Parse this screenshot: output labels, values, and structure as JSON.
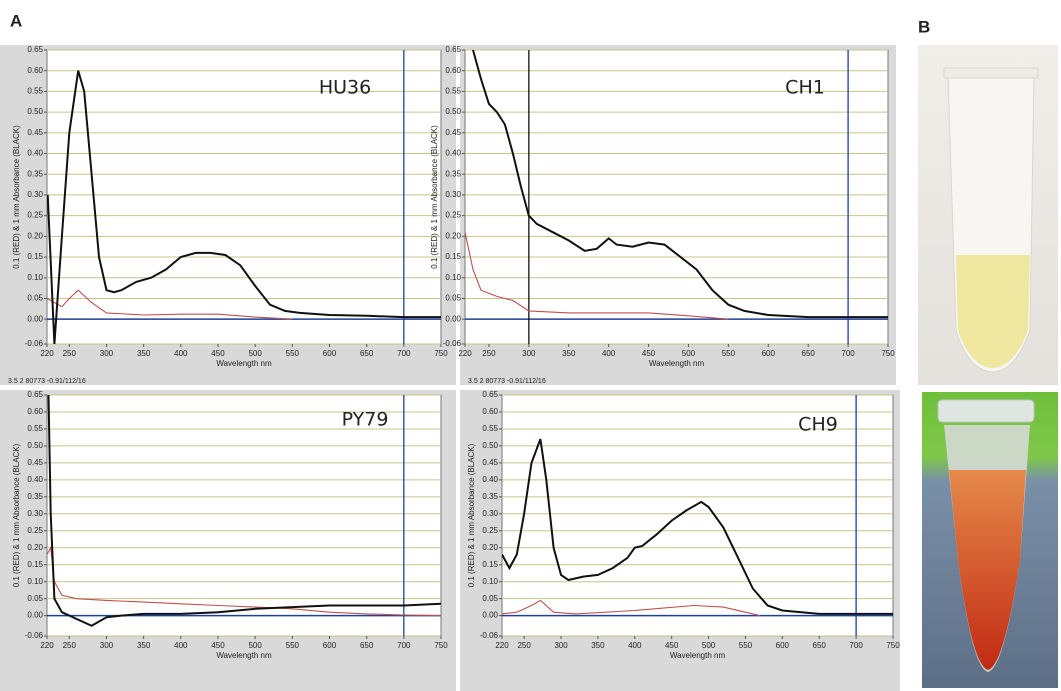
{
  "panel_labels": [
    "A",
    "B"
  ],
  "chart_data": [
    {
      "type": "line",
      "title": "HU36",
      "ylabel": "0.1 (RED) & 1 mm Absorbance (BLACK)",
      "xlabel": "Wavelength nm",
      "footer": "3.5 2 80773 -0.91/112/16",
      "xlim": [
        220,
        750
      ],
      "ylim": [
        -0.06,
        0.65
      ],
      "xticks": [
        220,
        250,
        300,
        350,
        400,
        450,
        500,
        550,
        600,
        650,
        700,
        750
      ],
      "yticks": [
        {
          "value": -0.06,
          "label": "-0.06"
        },
        {
          "value": 0,
          "label": "0.00"
        },
        {
          "value": 0.05,
          "label": "0.05"
        },
        {
          "value": 0.1,
          "label": "0.10"
        },
        {
          "value": 0.15,
          "label": "0.15"
        },
        {
          "value": 0.2,
          "label": "0.20"
        },
        {
          "value": 0.25,
          "label": "0.25"
        },
        {
          "value": 0.3,
          "label": "0.30"
        },
        {
          "value": 0.35,
          "label": "0.35"
        },
        {
          "value": 0.4,
          "label": "0.40"
        },
        {
          "value": 0.45,
          "label": "0.45"
        },
        {
          "value": 0.5,
          "label": "0.50"
        },
        {
          "value": 0.55,
          "label": "0.55"
        },
        {
          "value": 0.6,
          "label": "0.60"
        },
        {
          "value": 0.65,
          "label": "0.65"
        }
      ],
      "grid": true,
      "hline": {
        "y": 0,
        "color": "#1f3f9f"
      },
      "vlines": [
        {
          "x": 700,
          "color": "#1f3f9f"
        }
      ],
      "series": [
        {
          "color": "#111111",
          "x": [
            221,
            230,
            240,
            250,
            262,
            270,
            280,
            290,
            300,
            310,
            320,
            340,
            360,
            380,
            400,
            420,
            440,
            460,
            480,
            500,
            520,
            540,
            560,
            600,
            650,
            700,
            750
          ],
          "values": [
            0.3,
            -0.06,
            0.2,
            0.45,
            0.6,
            0.55,
            0.35,
            0.15,
            0.07,
            0.065,
            0.07,
            0.09,
            0.1,
            0.12,
            0.15,
            0.16,
            0.16,
            0.155,
            0.13,
            0.08,
            0.035,
            0.02,
            0.015,
            0.01,
            0.008,
            0.005,
            0.005
          ]
        },
        {
          "color": "#c0504d",
          "x": [
            220,
            240,
            250,
            262,
            280,
            300,
            350,
            400,
            450,
            500,
            550
          ],
          "values": [
            0.05,
            0.03,
            0.05,
            0.07,
            0.04,
            0.015,
            0.01,
            0.012,
            0.012,
            0.005,
            0
          ]
        }
      ]
    },
    {
      "type": "line",
      "title": "CH1",
      "ylabel": "0.1 (RED) & 1 mm Absorbance (BLACK)",
      "xlabel": "Wavelength nm",
      "footer": "3.5 2 80773 -0.91/112/16",
      "xlim": [
        220,
        750
      ],
      "ylim": [
        -0.06,
        0.65
      ],
      "xticks": [
        220,
        250,
        300,
        350,
        400,
        450,
        500,
        550,
        600,
        650,
        700,
        750
      ],
      "yticks": [
        {
          "value": -0.06,
          "label": "-0.06"
        },
        {
          "value": 0,
          "label": "0.00"
        },
        {
          "value": 0.05,
          "label": "0.05"
        },
        {
          "value": 0.1,
          "label": "0.10"
        },
        {
          "value": 0.15,
          "label": "0.15"
        },
        {
          "value": 0.2,
          "label": "0.20"
        },
        {
          "value": 0.25,
          "label": "0.25"
        },
        {
          "value": 0.3,
          "label": "0.30"
        },
        {
          "value": 0.35,
          "label": "0.35"
        },
        {
          "value": 0.4,
          "label": "0.40"
        },
        {
          "value": 0.45,
          "label": "0.45"
        },
        {
          "value": 0.5,
          "label": "0.50"
        },
        {
          "value": 0.55,
          "label": "0.55"
        },
        {
          "value": 0.6,
          "label": "0.60"
        },
        {
          "value": 0.65,
          "label": "0.65"
        }
      ],
      "grid": true,
      "hline": {
        "y": 0,
        "color": "#1f3f9f"
      },
      "vlines": [
        {
          "x": 300,
          "color": "#111111"
        },
        {
          "x": 700,
          "color": "#1f3f9f"
        }
      ],
      "series": [
        {
          "color": "#111111",
          "x": [
            230,
            240,
            250,
            260,
            270,
            280,
            290,
            300,
            310,
            330,
            350,
            370,
            385,
            400,
            410,
            430,
            450,
            470,
            490,
            510,
            530,
            550,
            570,
            600,
            650,
            700,
            750
          ],
          "values": [
            0.65,
            0.58,
            0.52,
            0.5,
            0.47,
            0.4,
            0.32,
            0.25,
            0.23,
            0.21,
            0.19,
            0.165,
            0.17,
            0.195,
            0.18,
            0.175,
            0.185,
            0.18,
            0.15,
            0.12,
            0.07,
            0.035,
            0.02,
            0.01,
            0.005,
            0.005,
            0.005
          ]
        },
        {
          "color": "#c0504d",
          "x": [
            220,
            230,
            240,
            260,
            280,
            300,
            350,
            400,
            450,
            500,
            550
          ],
          "values": [
            0.21,
            0.12,
            0.07,
            0.055,
            0.045,
            0.02,
            0.015,
            0.015,
            0.015,
            0.008,
            0
          ]
        }
      ]
    },
    {
      "type": "line",
      "title": "PY79",
      "ylabel": "0.1 (RED) & 1 mm Absorbance (BLACK)",
      "xlabel": "Wavelength nm",
      "xlim": [
        220,
        750
      ],
      "ylim": [
        -0.06,
        0.65
      ],
      "xticks": [
        220,
        250,
        300,
        350,
        400,
        450,
        500,
        550,
        600,
        650,
        700,
        750
      ],
      "yticks": [
        {
          "value": -0.06,
          "label": "-0.06"
        },
        {
          "value": 0,
          "label": "0.00"
        },
        {
          "value": 0.05,
          "label": "0.05"
        },
        {
          "value": 0.1,
          "label": "0.10"
        },
        {
          "value": 0.15,
          "label": "0.15"
        },
        {
          "value": 0.2,
          "label": "0.20"
        },
        {
          "value": 0.25,
          "label": "0.25"
        },
        {
          "value": 0.3,
          "label": "0.30"
        },
        {
          "value": 0.35,
          "label": "0.35"
        },
        {
          "value": 0.4,
          "label": "0.40"
        },
        {
          "value": 0.45,
          "label": "0.45"
        },
        {
          "value": 0.5,
          "label": "0.50"
        },
        {
          "value": 0.55,
          "label": "0.55"
        },
        {
          "value": 0.6,
          "label": "0.60"
        },
        {
          "value": 0.65,
          "label": "0.65"
        }
      ],
      "grid": true,
      "hline": {
        "y": 0,
        "color": "#1f3f9f"
      },
      "vlines": [
        {
          "x": 700,
          "color": "#1f3f9f"
        }
      ],
      "series": [
        {
          "color": "#111111",
          "x": [
            222,
            225,
            230,
            240,
            260,
            280,
            300,
            320,
            350,
            400,
            450,
            500,
            550,
            600,
            650,
            700,
            750
          ],
          "values": [
            0.65,
            0.3,
            0.05,
            0.01,
            -0.01,
            -0.03,
            -0.005,
            0,
            0.005,
            0.005,
            0.01,
            0.02,
            0.025,
            0.03,
            0.03,
            0.03,
            0.035
          ]
        },
        {
          "color": "#c0504d",
          "x": [
            220,
            225,
            230,
            240,
            260,
            300,
            350,
            400,
            450,
            500,
            550,
            600,
            650,
            700,
            750
          ],
          "values": [
            0.18,
            0.2,
            0.1,
            0.06,
            0.05,
            0.045,
            0.04,
            0.035,
            0.03,
            0.025,
            0.02,
            0.01,
            0.005,
            0.002,
            0
          ]
        }
      ]
    },
    {
      "type": "line",
      "title": "CH9",
      "ylabel": "0.1 (RED) & 1 mm Absorbance (BLACK)",
      "xlabel": "Wavelength nm",
      "xlim": [
        220,
        750
      ],
      "ylim": [
        -0.06,
        0.65
      ],
      "xticks": [
        220,
        250,
        300,
        350,
        400,
        450,
        500,
        550,
        600,
        650,
        700,
        750
      ],
      "yticks": [
        {
          "value": -0.06,
          "label": "-0.06"
        },
        {
          "value": 0,
          "label": "0.00"
        },
        {
          "value": 0.05,
          "label": "0.05"
        },
        {
          "value": 0.1,
          "label": "0.10"
        },
        {
          "value": 0.15,
          "label": "0.15"
        },
        {
          "value": 0.2,
          "label": "0.20"
        },
        {
          "value": 0.25,
          "label": "0.25"
        },
        {
          "value": 0.3,
          "label": "0.30"
        },
        {
          "value": 0.35,
          "label": "0.35"
        },
        {
          "value": 0.4,
          "label": "0.40"
        },
        {
          "value": 0.45,
          "label": "0.45"
        },
        {
          "value": 0.5,
          "label": "0.50"
        },
        {
          "value": 0.55,
          "label": "0.55"
        },
        {
          "value": 0.6,
          "label": "0.60"
        },
        {
          "value": 0.65,
          "label": "0.65"
        }
      ],
      "grid": true,
      "hline": {
        "y": 0,
        "color": "#1f3f9f"
      },
      "vlines": [
        {
          "x": 700,
          "color": "#1f3f9f"
        }
      ],
      "series": [
        {
          "color": "#111111",
          "x": [
            220,
            230,
            240,
            250,
            260,
            272,
            280,
            290,
            300,
            310,
            330,
            350,
            370,
            390,
            400,
            410,
            430,
            450,
            470,
            490,
            500,
            520,
            540,
            560,
            580,
            600,
            650,
            700,
            750
          ],
          "values": [
            0.18,
            0.14,
            0.18,
            0.3,
            0.45,
            0.52,
            0.4,
            0.2,
            0.12,
            0.105,
            0.115,
            0.12,
            0.14,
            0.17,
            0.2,
            0.205,
            0.24,
            0.28,
            0.31,
            0.335,
            0.32,
            0.26,
            0.17,
            0.08,
            0.03,
            0.015,
            0.005,
            0.005,
            0.005
          ]
        },
        {
          "color": "#c0504d",
          "x": [
            220,
            240,
            260,
            272,
            290,
            320,
            400,
            480,
            520,
            550,
            570
          ],
          "values": [
            0.005,
            0.01,
            0.03,
            0.045,
            0.01,
            0.005,
            0.015,
            0.03,
            0.025,
            0.01,
            0
          ]
        }
      ]
    }
  ]
}
